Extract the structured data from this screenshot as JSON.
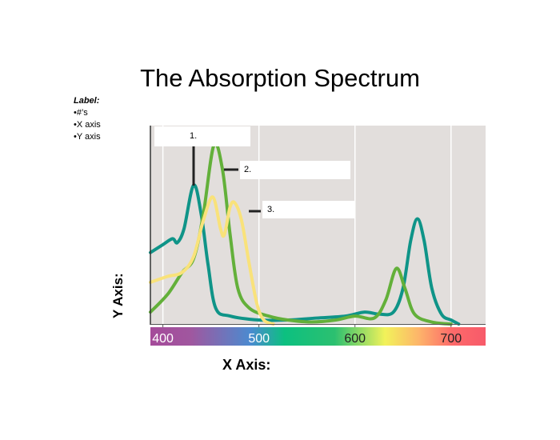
{
  "slide": {
    "title": "The Absorption Spectrum",
    "label_heading": "Label:",
    "label_items": [
      "•#’s",
      "•X axis",
      "•Y axis"
    ],
    "y_axis_prompt": "Y Axis:",
    "x_axis_prompt": "X Axis:"
  },
  "chart_data": {
    "type": "line",
    "title": "",
    "xlabel": "",
    "ylabel": "",
    "xlim": [
      387,
      736
    ],
    "ylim": [
      0,
      1
    ],
    "x_ticks": [
      "400",
      "500",
      "600",
      "700"
    ],
    "x_tick_values": [
      400,
      500,
      600,
      700
    ],
    "grid": "vertical",
    "callouts": [
      "1.",
      "2.",
      "3."
    ],
    "series": [
      {
        "color": "#0f9488",
        "points": [
          [
            387,
            0.36
          ],
          [
            400,
            0.4
          ],
          [
            410,
            0.43
          ],
          [
            415,
            0.41
          ],
          [
            422,
            0.48
          ],
          [
            432,
            0.7
          ],
          [
            440,
            0.55
          ],
          [
            447,
            0.3
          ],
          [
            455,
            0.08
          ],
          [
            470,
            0.04
          ],
          [
            500,
            0.02
          ],
          [
            530,
            0.02
          ],
          [
            560,
            0.03
          ],
          [
            590,
            0.04
          ],
          [
            610,
            0.06
          ],
          [
            625,
            0.05
          ],
          [
            640,
            0.06
          ],
          [
            650,
            0.18
          ],
          [
            658,
            0.42
          ],
          [
            665,
            0.53
          ],
          [
            672,
            0.42
          ],
          [
            680,
            0.18
          ],
          [
            690,
            0.05
          ],
          [
            700,
            0.02
          ],
          [
            708,
            0.0
          ]
        ]
      },
      {
        "color": "#63b03a",
        "points": [
          [
            387,
            0.06
          ],
          [
            405,
            0.15
          ],
          [
            420,
            0.26
          ],
          [
            432,
            0.33
          ],
          [
            442,
            0.55
          ],
          [
            453,
            0.9
          ],
          [
            462,
            0.78
          ],
          [
            470,
            0.45
          ],
          [
            478,
            0.18
          ],
          [
            490,
            0.08
          ],
          [
            510,
            0.04
          ],
          [
            530,
            0.02
          ],
          [
            555,
            0.01
          ],
          [
            580,
            0.02
          ],
          [
            600,
            0.04
          ],
          [
            620,
            0.03
          ],
          [
            632,
            0.12
          ],
          [
            643,
            0.28
          ],
          [
            652,
            0.18
          ],
          [
            662,
            0.05
          ],
          [
            680,
            0.01
          ],
          [
            700,
            0.0
          ]
        ]
      },
      {
        "color": "#f9e27a",
        "points": [
          [
            387,
            0.21
          ],
          [
            405,
            0.24
          ],
          [
            420,
            0.26
          ],
          [
            432,
            0.34
          ],
          [
            442,
            0.52
          ],
          [
            452,
            0.64
          ],
          [
            460,
            0.48
          ],
          [
            464,
            0.45
          ],
          [
            470,
            0.59
          ],
          [
            475,
            0.61
          ],
          [
            482,
            0.52
          ],
          [
            490,
            0.3
          ],
          [
            498,
            0.1
          ],
          [
            505,
            0.02
          ],
          [
            515,
            0.0
          ]
        ]
      }
    ],
    "colors": {
      "plot_bg": "#e2dedc",
      "grid": "#ffffff"
    }
  }
}
